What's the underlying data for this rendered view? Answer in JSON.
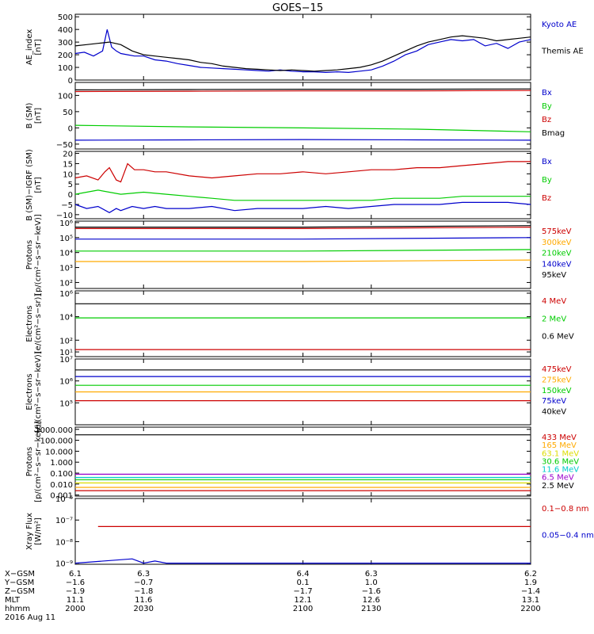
{
  "title": "GOES−15",
  "colors": {
    "black": "#000000",
    "blue": "#0000cc",
    "green": "#00cc00",
    "red": "#cc0000",
    "orange": "#ffaa00",
    "yellow": "#dddd00",
    "cyan": "#00cccc",
    "purple": "#9900cc"
  },
  "chart_data": [
    {
      "id": "ae",
      "type": "line",
      "ylabel": "AE_index\n[nT]",
      "yticks": [
        "500",
        "400",
        "300",
        "200",
        "100",
        "0"
      ],
      "ytick_values": [
        500,
        400,
        300,
        200,
        100,
        0
      ],
      "ylim": [
        0,
        520
      ],
      "series": [
        {
          "name": "Kyoto AE",
          "color": "blue",
          "x": [
            2000,
            2004,
            2008,
            2012,
            2014,
            2016,
            2018,
            2020,
            2023,
            2026,
            2030,
            2035,
            2040,
            2045,
            2050,
            2055,
            2060,
            2065,
            2070,
            2075,
            2080,
            2085,
            2090,
            2095,
            2100,
            2105,
            2110,
            2115,
            2120,
            2125,
            2130,
            2135,
            2140,
            2145,
            2150,
            2155,
            2160,
            2165,
            2170,
            2175,
            2180,
            2185,
            2190,
            2195,
            2200
          ],
          "values": [
            210,
            220,
            190,
            230,
            400,
            260,
            230,
            210,
            200,
            190,
            190,
            160,
            150,
            130,
            115,
            100,
            95,
            90,
            85,
            80,
            75,
            70,
            80,
            70,
            65,
            65,
            60,
            65,
            60,
            70,
            80,
            110,
            150,
            200,
            230,
            280,
            300,
            320,
            310,
            320,
            270,
            290,
            250,
            300,
            320
          ]
        },
        {
          "name": "Themis AE",
          "color": "black",
          "x": [
            2000,
            2005,
            2010,
            2015,
            2020,
            2025,
            2030,
            2035,
            2040,
            2045,
            2050,
            2055,
            2060,
            2065,
            2070,
            2075,
            2080,
            2085,
            2090,
            2095,
            2100,
            2105,
            2110,
            2115,
            2120,
            2125,
            2130,
            2135,
            2140,
            2145,
            2150,
            2155,
            2160,
            2165,
            2170,
            2175,
            2180,
            2185,
            2190,
            2195,
            2200
          ],
          "values": [
            270,
            280,
            290,
            300,
            280,
            230,
            200,
            190,
            180,
            170,
            160,
            140,
            130,
            110,
            100,
            90,
            85,
            80,
            75,
            80,
            75,
            70,
            75,
            80,
            90,
            100,
            120,
            150,
            190,
            230,
            270,
            300,
            320,
            340,
            350,
            340,
            330,
            310,
            320,
            330,
            340
          ]
        }
      ]
    },
    {
      "id": "bsm",
      "type": "line",
      "ylabel": "B (SM)\n[nT]",
      "yticks": [
        "100",
        "50",
        "0",
        "−50"
      ],
      "ytick_values": [
        100,
        50,
        0,
        -50
      ],
      "ylim": [
        -65,
        140
      ],
      "series": [
        {
          "name": "Bx",
          "color": "blue",
          "x": [
            2000,
            2050,
            2100,
            2150,
            2200
          ],
          "values": [
            -38,
            -37,
            -36,
            -37,
            -38
          ]
        },
        {
          "name": "By",
          "color": "green",
          "x": [
            2000,
            2050,
            2100,
            2150,
            2200
          ],
          "values": [
            8,
            3,
            0,
            -4,
            -12
          ]
        },
        {
          "name": "Bz",
          "color": "red",
          "x": [
            2000,
            2050,
            2100,
            2150,
            2200
          ],
          "values": [
            112,
            113,
            114,
            114,
            115
          ]
        },
        {
          "name": "Bmag",
          "color": "black",
          "x": [
            2000,
            2050,
            2100,
            2150,
            2200
          ],
          "values": [
            117,
            118,
            119,
            119,
            120
          ]
        }
      ]
    },
    {
      "id": "bigrf",
      "type": "line",
      "ylabel": "B (SM)−IGRF (SM)\n[nT]",
      "yticks": [
        "20",
        "15",
        "10",
        "5",
        "0",
        "−5",
        "−10"
      ],
      "ytick_values": [
        20,
        15,
        10,
        5,
        0,
        -5,
        -10
      ],
      "ylim": [
        -12,
        21
      ],
      "series": [
        {
          "name": "Bx",
          "color": "blue",
          "x": [
            2000,
            2005,
            2010,
            2015,
            2018,
            2020,
            2025,
            2030,
            2035,
            2040,
            2050,
            2060,
            2070,
            2080,
            2090,
            2100,
            2110,
            2120,
            2130,
            2140,
            2150,
            2160,
            2170,
            2180,
            2190,
            2200
          ],
          "values": [
            -5,
            -7,
            -6,
            -9,
            -7,
            -8,
            -6,
            -7,
            -6,
            -7,
            -7,
            -6,
            -8,
            -7,
            -7,
            -7,
            -6,
            -7,
            -6,
            -5,
            -5,
            -5,
            -4,
            -4,
            -4,
            -5
          ]
        },
        {
          "name": "By",
          "color": "green",
          "x": [
            2000,
            2010,
            2020,
            2030,
            2040,
            2050,
            2060,
            2070,
            2080,
            2090,
            2100,
            2110,
            2120,
            2130,
            2140,
            2150,
            2160,
            2170,
            2180,
            2190,
            2200
          ],
          "values": [
            0,
            2,
            0,
            1,
            0,
            -1,
            -2,
            -3,
            -3,
            -3,
            -3,
            -3,
            -3,
            -3,
            -2,
            -2,
            -2,
            -1,
            -1,
            -1,
            -1
          ]
        },
        {
          "name": "Bz",
          "color": "red",
          "x": [
            2000,
            2005,
            2010,
            2013,
            2015,
            2018,
            2020,
            2023,
            2026,
            2030,
            2035,
            2040,
            2050,
            2060,
            2070,
            2080,
            2090,
            2100,
            2110,
            2120,
            2130,
            2140,
            2150,
            2160,
            2170,
            2180,
            2190,
            2200
          ],
          "values": [
            8,
            9,
            7,
            11,
            13,
            7,
            6,
            15,
            12,
            12,
            11,
            11,
            9,
            8,
            9,
            10,
            10,
            11,
            10,
            11,
            12,
            12,
            13,
            13,
            14,
            15,
            16,
            16
          ]
        }
      ]
    },
    {
      "id": "protons_low",
      "type": "line",
      "yscale": "log",
      "ylabel": "Protons\n[p/(cm²−s−sr−keV)]",
      "yticks": [
        "10⁶",
        "10⁵",
        "10⁴",
        "10³",
        "10²"
      ],
      "ytick_values": [
        6,
        5,
        4,
        3,
        2
      ],
      "ylim": [
        1.6,
        6.1
      ],
      "series": [
        {
          "name": "575keV",
          "color": "red",
          "x": [
            2000,
            2100,
            2200
          ],
          "values": [
            5.6,
            5.6,
            5.7
          ]
        },
        {
          "name": "300keV",
          "color": "orange",
          "x": [
            2000,
            2100,
            2200
          ],
          "values": [
            3.4,
            3.4,
            3.5
          ]
        },
        {
          "name": "210keV",
          "color": "green",
          "x": [
            2000,
            2100,
            2200
          ],
          "values": [
            4.1,
            4.1,
            4.2
          ]
        },
        {
          "name": "140keV",
          "color": "blue",
          "x": [
            2000,
            2100,
            2200
          ],
          "values": [
            4.9,
            4.9,
            5.0
          ]
        },
        {
          "name": "95keV",
          "color": "black",
          "x": [
            2000,
            2100,
            2200
          ],
          "values": [
            5.7,
            5.7,
            5.8
          ]
        }
      ]
    },
    {
      "id": "electrons_high",
      "type": "line",
      "yscale": "log",
      "ylabel": "Electrons\n[e/(cm²−s−sr)]",
      "yticks": [
        "10⁶",
        "10⁴",
        "10²",
        "10¹"
      ],
      "ytick_values": [
        6,
        4,
        2,
        1
      ],
      "ylim": [
        0.6,
        6.2
      ],
      "series": [
        {
          "name": "4 MeV",
          "color": "red",
          "x": [
            2000,
            2100,
            2200
          ],
          "values": [
            1.2,
            1.2,
            1.2
          ]
        },
        {
          "name": "2 MeV",
          "color": "green",
          "x": [
            2000,
            2100,
            2200
          ],
          "values": [
            3.9,
            3.9,
            3.9
          ]
        },
        {
          "name": "0.6 MeV",
          "color": "black",
          "x": [
            2000,
            2100,
            2200
          ],
          "values": [
            5.1,
            5.1,
            5.1
          ]
        }
      ]
    },
    {
      "id": "electrons_low",
      "type": "line",
      "yscale": "log",
      "ylabel": "Electrons\n[e/(cm²−s−sr−keV)]",
      "yticks": [
        "10⁷",
        "10⁶",
        "10⁵"
      ],
      "ytick_values": [
        7,
        6,
        5
      ],
      "ylim": [
        4.0,
        7.0
      ],
      "series": [
        {
          "name": "475keV",
          "color": "red",
          "x": [
            2000,
            2100,
            2200
          ],
          "values": [
            5.1,
            5.1,
            5.1
          ]
        },
        {
          "name": "275keV",
          "color": "orange",
          "x": [
            2000,
            2100,
            2200
          ],
          "values": [
            5.5,
            5.5,
            5.5
          ]
        },
        {
          "name": "150keV",
          "color": "green",
          "x": [
            2000,
            2100,
            2200
          ],
          "values": [
            5.8,
            5.8,
            5.8
          ]
        },
        {
          "name": "75keV",
          "color": "blue",
          "x": [
            2000,
            2100,
            2200
          ],
          "values": [
            6.2,
            6.2,
            6.2
          ]
        },
        {
          "name": "40keV",
          "color": "black",
          "x": [
            2000,
            2100,
            2200
          ],
          "values": [
            6.5,
            6.5,
            6.5
          ]
        }
      ]
    },
    {
      "id": "protons_high",
      "type": "line",
      "yscale": "log",
      "ylabel": "Protons\n[p/(cm²−s−sr−keV)]",
      "yticks": [
        "1000.000",
        "100.000",
        "10.000",
        "1.000",
        "0.100",
        "0.010",
        "0.001"
      ],
      "ytick_values": [
        3,
        2,
        1,
        0,
        -1,
        -2,
        -3
      ],
      "ylim": [
        -3.1,
        3.2
      ],
      "series": [
        {
          "name": "433 MeV",
          "color": "red",
          "x": [
            2000,
            2100,
            2200
          ],
          "values": [
            -2.6,
            -2.6,
            -2.6
          ]
        },
        {
          "name": "165 MeV",
          "color": "orange",
          "x": [
            2000,
            2100,
            2200
          ],
          "values": [
            -2.3,
            -2.3,
            -2.3
          ]
        },
        {
          "name": "63.1 MeV",
          "color": "yellow",
          "x": [
            2000,
            2100,
            2200
          ],
          "values": [
            -1.9,
            -1.9,
            -1.9
          ]
        },
        {
          "name": "30.6 MeV",
          "color": "green",
          "x": [
            2000,
            2100,
            2200
          ],
          "values": [
            -1.6,
            -1.6,
            -1.6
          ]
        },
        {
          "name": "11.6 MeV",
          "color": "cyan",
          "x": [
            2000,
            2100,
            2200
          ],
          "values": [
            -1.4,
            -1.4,
            -1.4
          ]
        },
        {
          "name": "6.5 MeV",
          "color": "purple",
          "x": [
            2000,
            2100,
            2200
          ],
          "values": [
            -1.1,
            -1.1,
            -1.1
          ]
        },
        {
          "name": "2.5 MeV",
          "color": "black",
          "x": [
            2000,
            2100,
            2200
          ],
          "values": [
            2.5,
            2.5,
            2.5
          ]
        }
      ]
    },
    {
      "id": "xray",
      "type": "line",
      "yscale": "log",
      "ylabel": "Xray Flux\n[W/m²]",
      "yticks": [
        "10⁻⁶",
        "10⁻⁷",
        "10⁻⁸",
        "10⁻⁹"
      ],
      "ytick_values": [
        -6,
        -7,
        -8,
        -9
      ],
      "ylim": [
        -9.05,
        -6.0
      ],
      "series": [
        {
          "name": "0.1−0.8 nm",
          "color": "red",
          "x": [
            2010,
            2100,
            2200
          ],
          "values": [
            -7.3,
            -7.3,
            -7.3
          ]
        },
        {
          "name": "0.05−0.4 nm",
          "color": "blue",
          "x": [
            2000,
            2025,
            2030,
            2035,
            2040,
            2200
          ],
          "values": [
            -9.0,
            -8.8,
            -9.0,
            -8.9,
            -9.0,
            -9.0
          ]
        }
      ]
    }
  ],
  "xaxis": {
    "min": 2000,
    "max": 2200,
    "ticks": [
      2000,
      2030,
      2100,
      2130,
      2200
    ],
    "rows": [
      {
        "label": "X−GSM",
        "values": [
          "6.1",
          "6.3",
          "6.4",
          "6.3",
          "6.2"
        ]
      },
      {
        "label": "Y−GSM",
        "values": [
          "−1.6",
          "−0.7",
          "0.1",
          "1.0",
          "1.9"
        ]
      },
      {
        "label": "Z−GSM",
        "values": [
          "−1.9",
          "−1.8",
          "−1.7",
          "−1.6",
          "−1.4"
        ]
      },
      {
        "label": "MLT",
        "values": [
          "11.1",
          "11.6",
          "12.1",
          "12.6",
          "13.1"
        ]
      },
      {
        "label": "hhmm",
        "values": [
          "2000",
          "2030",
          "2100",
          "2130",
          "2200"
        ]
      }
    ],
    "date": "2016 Aug 11"
  }
}
